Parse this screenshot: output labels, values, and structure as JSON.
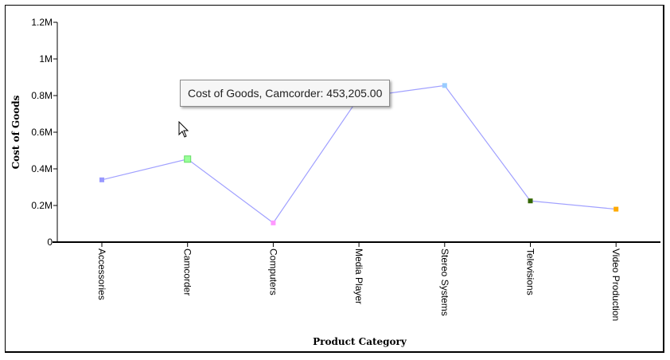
{
  "chart_data": {
    "type": "line",
    "title": "",
    "xlabel": "Product Category",
    "ylabel": "Cost of Goods",
    "categories": [
      "Accessories",
      "Camcorder",
      "Computers",
      "Media Player",
      "Stereo Systems",
      "Televisions",
      "Video Production"
    ],
    "series": [
      {
        "values": [
          340000,
          453205,
          105000,
          790000,
          855000,
          225000,
          180000
        ],
        "color": "#a0a0ff"
      }
    ],
    "marker_colors": [
      "#9999ff",
      "#99ff99",
      "#ff99ff",
      "#9999ff",
      "#99ccff",
      "#336600",
      "#ffaa00"
    ],
    "highlighted_index": 1,
    "ylim": [
      0,
      1200000
    ],
    "yticks": [
      0,
      200000,
      400000,
      600000,
      800000,
      1000000,
      1200000
    ],
    "ytick_labels": [
      "0",
      "0.2M",
      "0.4M",
      "0.6M",
      "0.8M",
      "1M",
      "1.2M"
    ],
    "grid": false,
    "legend": "none"
  },
  "tooltip": {
    "text": "Cost of Goods, Camcorder: 453,205.00"
  }
}
